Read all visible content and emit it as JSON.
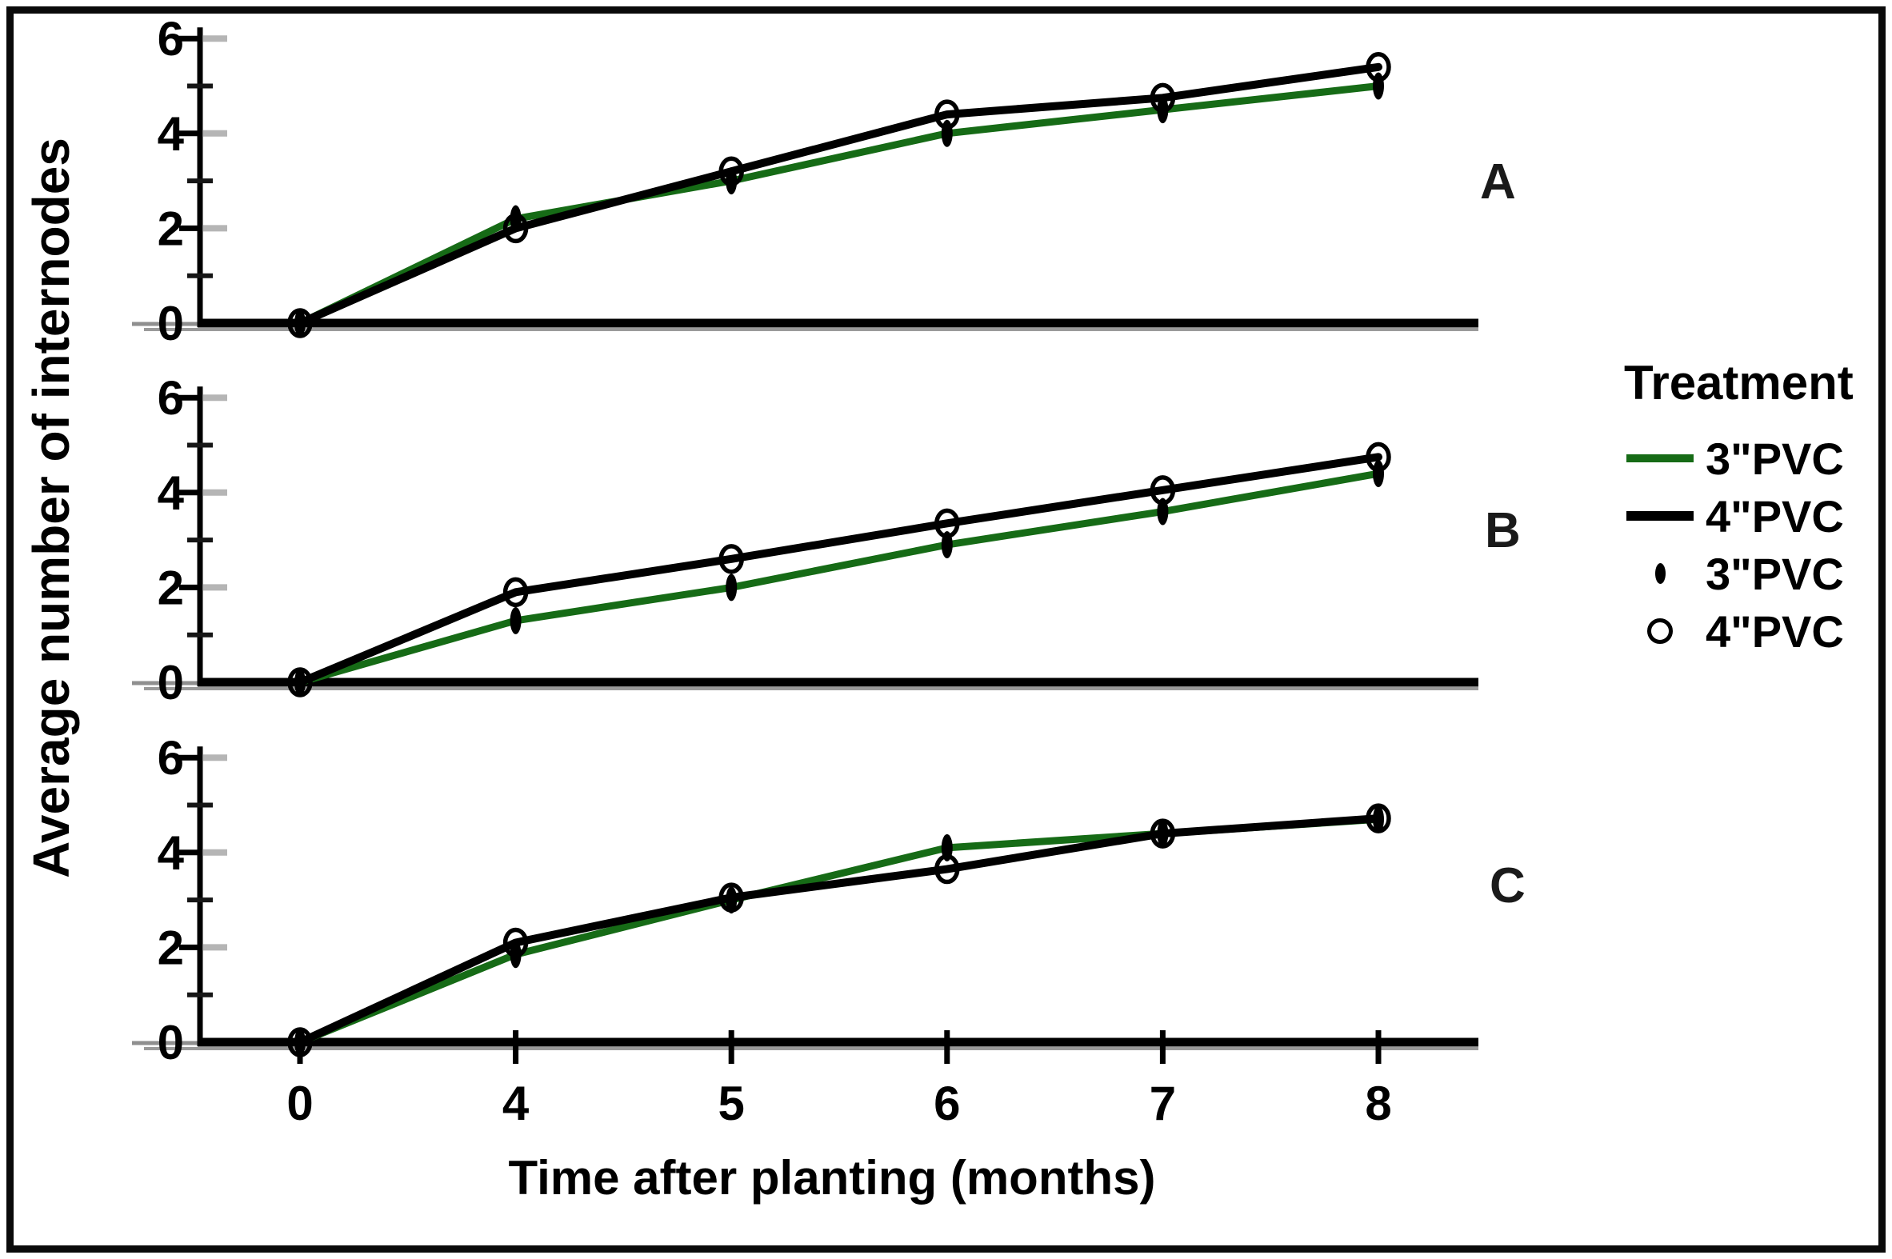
{
  "figure": {
    "y_axis_label": "Average number of internodes",
    "x_axis_label": "Time after planting (months)",
    "colors": {
      "green_series": "#166b16",
      "black_series": "#000000",
      "axis_shadow": "#8f8f8f",
      "major_tick_dash": "#b5b5b5",
      "frame": "#0a0a0a",
      "background": "#ffffff"
    },
    "legend": {
      "title": "Treatment",
      "items": [
        {
          "icon": "green-line",
          "label": "3\"PVC"
        },
        {
          "icon": "black-line",
          "label": "4\"PVC"
        },
        {
          "icon": "filled-ellipse-marker",
          "label": "3\"PVC"
        },
        {
          "icon": "open-circle-marker",
          "label": "4\"PVC"
        }
      ]
    }
  },
  "chart_data": [
    {
      "type": "line",
      "panel": "A",
      "x_categories": [
        "0",
        "4",
        "5",
        "6",
        "7",
        "8"
      ],
      "x_spacing": "categorical-even",
      "ylim": [
        0,
        6
      ],
      "y_major_ticks": [
        0,
        2,
        4,
        6
      ],
      "y_minor_ticks": [
        1,
        3,
        5
      ],
      "grid": false,
      "legend_position": "right",
      "series": [
        {
          "name": "3\"PVC",
          "color": "#166b16",
          "marker": "filled-ellipse",
          "values": [
            0,
            2.2,
            3.0,
            4.0,
            4.5,
            5.0
          ]
        },
        {
          "name": "4\"PVC",
          "color": "#000000",
          "marker": "open-circle",
          "values": [
            0,
            2.0,
            3.2,
            4.4,
            4.75,
            5.4
          ]
        }
      ]
    },
    {
      "type": "line",
      "panel": "B",
      "x_categories": [
        "0",
        "4",
        "5",
        "6",
        "7",
        "8"
      ],
      "x_spacing": "categorical-even",
      "ylim": [
        0,
        6
      ],
      "y_major_ticks": [
        0,
        2,
        4,
        6
      ],
      "y_minor_ticks": [
        1,
        3,
        5
      ],
      "grid": false,
      "legend_position": "right",
      "series": [
        {
          "name": "3\"PVC",
          "color": "#166b16",
          "marker": "filled-ellipse",
          "values": [
            0,
            1.3,
            2.0,
            2.9,
            3.6,
            4.4
          ]
        },
        {
          "name": "4\"PVC",
          "color": "#000000",
          "marker": "open-circle",
          "values": [
            0,
            1.9,
            2.6,
            3.35,
            4.05,
            4.75
          ]
        }
      ]
    },
    {
      "type": "line",
      "panel": "C",
      "x_categories": [
        "0",
        "4",
        "5",
        "6",
        "7",
        "8"
      ],
      "x_spacing": "categorical-even",
      "ylim": [
        0,
        6
      ],
      "y_major_ticks": [
        0,
        2,
        4,
        6
      ],
      "y_minor_ticks": [
        1,
        3,
        5
      ],
      "grid": false,
      "legend_position": "right",
      "series": [
        {
          "name": "3\"PVC",
          "color": "#166b16",
          "marker": "filled-ellipse",
          "values": [
            0,
            1.85,
            3.0,
            4.1,
            4.4,
            4.7
          ]
        },
        {
          "name": "4\"PVC",
          "color": "#000000",
          "marker": "open-circle",
          "values": [
            0,
            2.1,
            3.05,
            3.65,
            4.4,
            4.72
          ]
        }
      ]
    }
  ]
}
